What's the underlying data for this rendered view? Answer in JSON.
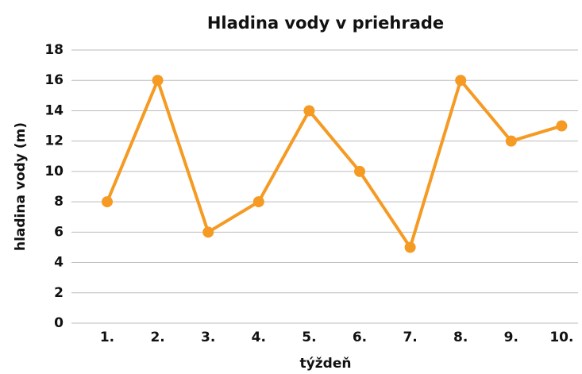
{
  "chart_data": {
    "type": "line",
    "title": "Hladina vody v priehrade",
    "x_label": "týždeň",
    "y_label": "hladina vody (m)",
    "categories": [
      "1.",
      "2.",
      "3.",
      "4.",
      "5.",
      "6.",
      "7.",
      "8.",
      "9.",
      "10."
    ],
    "values": [
      8,
      16,
      6,
      8,
      14,
      10,
      5,
      16,
      12,
      13
    ],
    "color": "#f59a23",
    "ylim": [
      0,
      18
    ],
    "yticks": [
      0,
      2,
      4,
      6,
      8,
      10,
      12,
      14,
      16,
      18
    ],
    "grid": true
  }
}
